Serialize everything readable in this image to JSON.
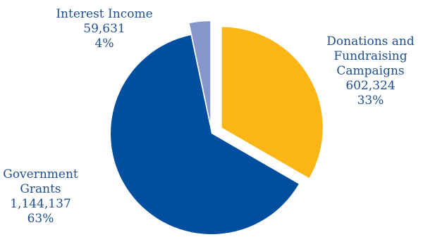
{
  "chart_data": {
    "type": "pie",
    "title": "",
    "slices": [
      {
        "name_lines": [
          "Donations and",
          "Fundraising",
          "Campaigns"
        ],
        "value": 602324,
        "value_label": "602,324",
        "percent": 33,
        "percent_label": "33%",
        "color": "#fbb515",
        "exploded": true
      },
      {
        "name_lines": [
          "Government",
          "Grants"
        ],
        "value": 1144137,
        "value_label": "1,144,137",
        "percent": 63,
        "percent_label": "63%",
        "color": "#004f9e",
        "exploded": false
      },
      {
        "name_lines": [
          "Interest Income"
        ],
        "value": 59631,
        "value_label": "59,631",
        "percent": 4,
        "percent_label": "4%",
        "color": "#8596cc",
        "exploded": true
      }
    ]
  }
}
